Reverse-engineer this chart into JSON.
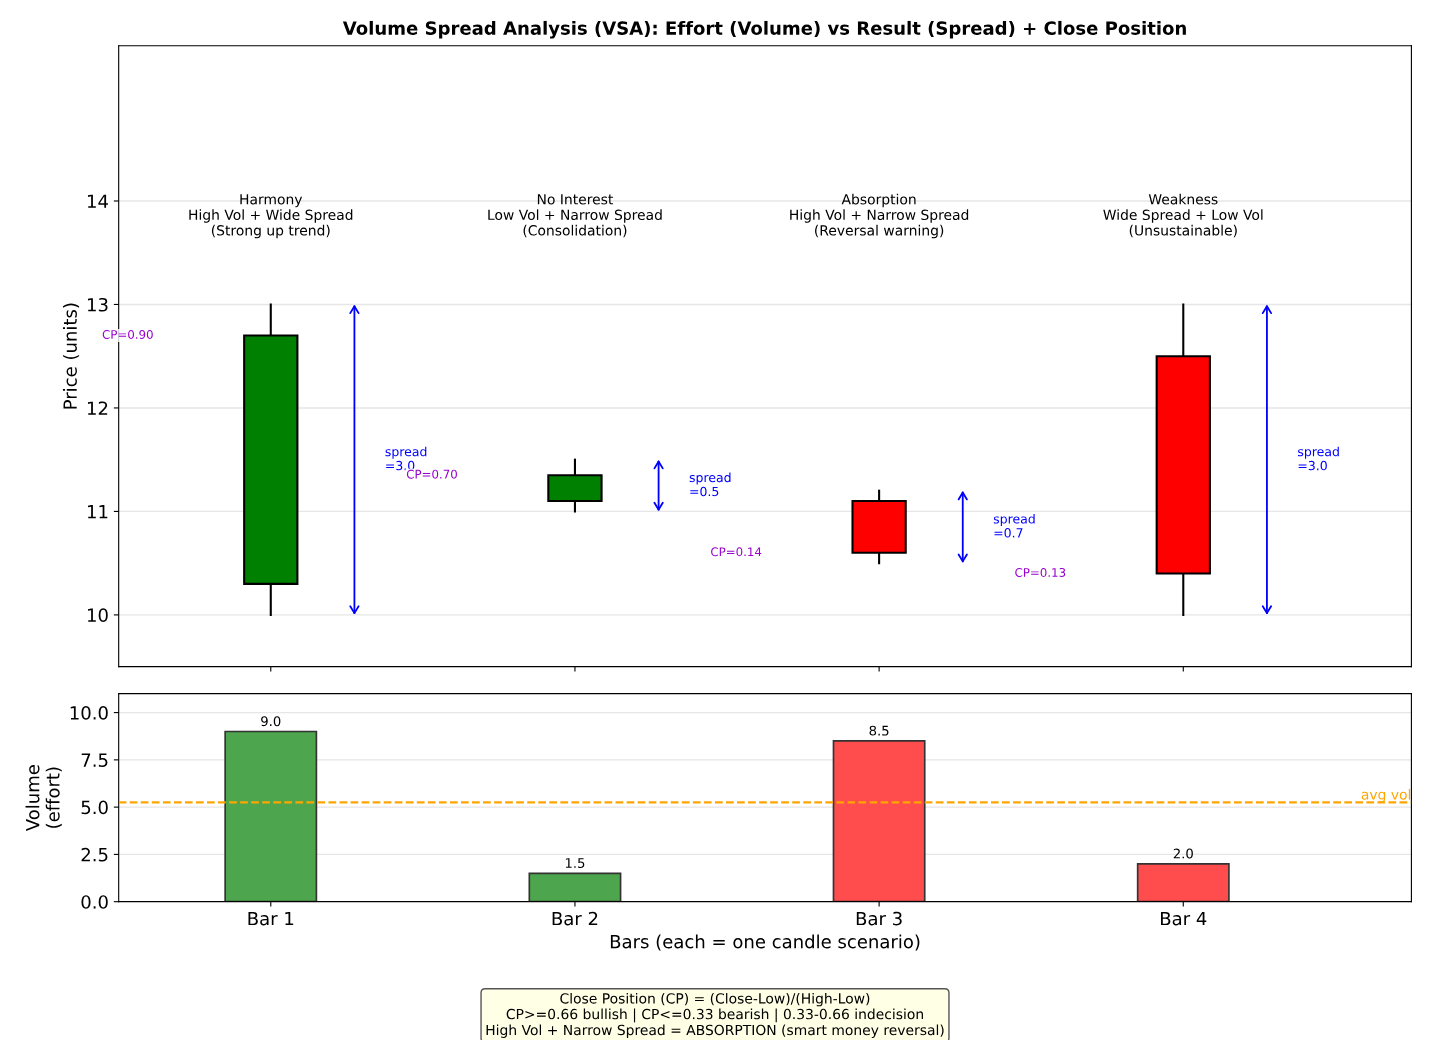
{
  "chart_data": [
    {
      "type": "candlestick",
      "title": "Volume Spread Analysis (VSA): Effort (Volume) vs Result (Spread) + Close Position",
      "ylabel": "Price (units)",
      "categories": [
        null,
        null,
        null,
        null
      ],
      "ohlc": [
        [
          10.3,
          13.0,
          10.0,
          12.7
        ],
        [
          11.1,
          11.5,
          11.0,
          11.35
        ],
        [
          11.1,
          11.2,
          10.5,
          10.6
        ],
        [
          12.5,
          13.0,
          10.0,
          10.4
        ]
      ],
      "colors": [
        "#008000",
        "#008000",
        "#ff0000",
        "#ff0000"
      ],
      "ylim": [
        9.5,
        15.5
      ],
      "yticks": [
        10,
        11,
        12,
        13,
        14
      ],
      "grid": "y",
      "tick_labels": "y",
      "annotations": [
        "Harmony\nHigh Vol + Wide Spread\n(Strong up trend)",
        "No Interest\nLow Vol + Narrow Spread\n(Consolidation)",
        "Absorption\nHigh Vol + Narrow Spread\n(Reversal warning)",
        "Weakness\nWide Spread + Low Vol\n(Unsustainable)",
        "spread\n=3.0",
        "spread\n=0.5",
        "spread\n=0.7",
        "spread\n=3.0",
        "CP=0.90",
        "CP=0.70",
        "CP=0.14",
        "CP=0.13"
      ]
    },
    {
      "type": "bar",
      "xlabel": "Bars (each = one candle scenario)",
      "ylabel": "Volume\n(effort)",
      "categories": [
        "Bar 1",
        "Bar 2",
        "Bar 3",
        "Bar 4"
      ],
      "values": [
        9.0,
        1.5,
        8.5,
        2.0
      ],
      "colors": [
        "#4da64d",
        "#4da64d",
        "#ff4d4d",
        "#ff4d4d"
      ],
      "value_labels": [
        "9.0",
        "1.5",
        "8.5",
        "2.0"
      ],
      "ylim": [
        0,
        11
      ],
      "yticks": [
        {
          "value": 0,
          "label": "0.0"
        },
        {
          "value": 2.5,
          "label": "2.5"
        },
        {
          "value": 5,
          "label": "5.0"
        },
        {
          "value": 7.5,
          "label": "7.5"
        },
        {
          "value": 10,
          "label": "10.0"
        }
      ],
      "grid": "y",
      "ref_lines": [
        {
          "axis": "y",
          "value": 5.25,
          "label": "avg vol",
          "color": "#ffa500",
          "line_style": "dashed"
        }
      ],
      "annotations": [
        "Close Position (CP) = (Close-Low)/(High-Low)\nCP>=0.66 bullish | CP<=0.33 bearish | 0.33-0.66 indecision\nHigh Vol + Narrow Spread = ABSORPTION (smart money reversal)"
      ]
    }
  ]
}
